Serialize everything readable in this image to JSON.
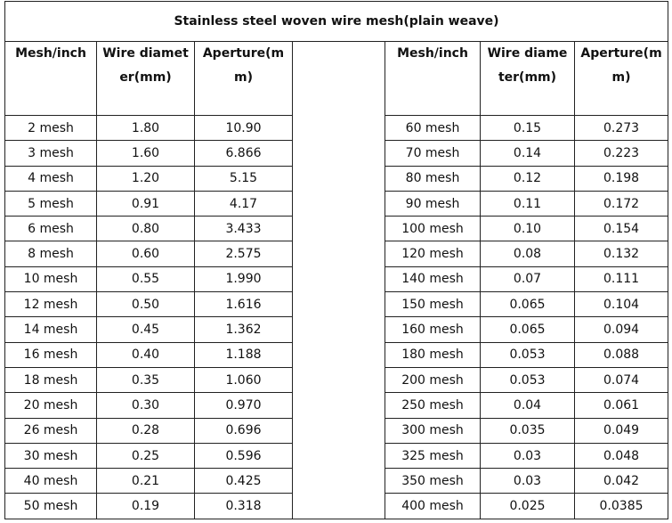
{
  "title": "Stainless steel woven wire mesh(plain weave)",
  "headers": [
    "Mesh/inch",
    "Wire diameter(mm)",
    "Aperture(mm)",
    "Mesh/inch",
    "Wire diameter(mm)",
    "Aperture(mm)"
  ],
  "rows": [
    [
      "2 mesh",
      "1.80",
      "10.90",
      "60 mesh",
      "0.15",
      "0.273"
    ],
    [
      "3 mesh",
      "1.60",
      "6.866",
      "70 mesh",
      "0.14",
      "0.223"
    ],
    [
      "4 mesh",
      "1.20",
      "5.15",
      "80 mesh",
      "0.12",
      "0.198"
    ],
    [
      "5 mesh",
      "0.91",
      "4.17",
      "90 mesh",
      "0.11",
      "0.172"
    ],
    [
      "6 mesh",
      "0.80",
      "3.433",
      "100 mesh",
      "0.10",
      "0.154"
    ],
    [
      "8 mesh",
      "0.60",
      "2.575",
      "120 mesh",
      "0.08",
      "0.132"
    ],
    [
      "10 mesh",
      "0.55",
      "1.990",
      "140 mesh",
      "0.07",
      "0.111"
    ],
    [
      "12 mesh",
      "0.50",
      "1.616",
      "150 mesh",
      "0.065",
      "0.104"
    ],
    [
      "14 mesh",
      "0.45",
      "1.362",
      "160 mesh",
      "0.065",
      "0.094"
    ],
    [
      "16 mesh",
      "0.40",
      "1.188",
      "180 mesh",
      "0.053",
      "0.088"
    ],
    [
      "18 mesh",
      "0.35",
      "1.060",
      "200 mesh",
      "0.053",
      "0.074"
    ],
    [
      "20 mesh",
      "0.30",
      "0.970",
      "250 mesh",
      "0.04",
      "0.061"
    ],
    [
      "26 mesh",
      "0.28",
      "0.696",
      "300 mesh",
      "0.035",
      "0.049"
    ],
    [
      "30 mesh",
      "0.25",
      "0.596",
      "325 mesh",
      "0.03",
      "0.048"
    ],
    [
      "40 mesh",
      "0.21",
      "0.425",
      "350 mesh",
      "0.03",
      "0.042"
    ],
    [
      "50 mesh",
      "0.19",
      "0.318",
      "400 mesh",
      "0.025",
      "0.0385"
    ]
  ]
}
